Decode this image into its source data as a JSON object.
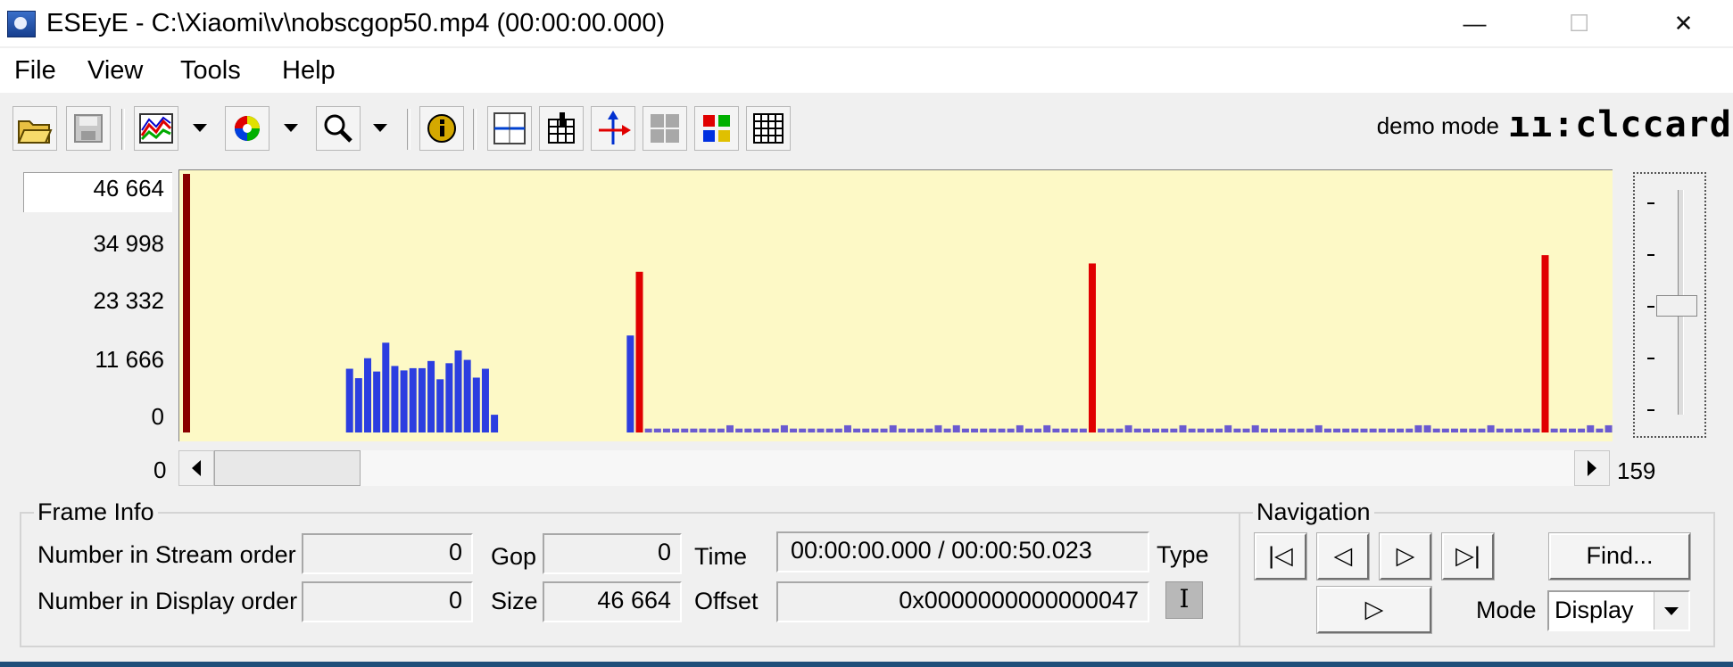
{
  "window": {
    "title": "ESEyE - C:\\Xiaomi\\v\\nobscgop50.mp4 (00:00:00.000)",
    "minimize_glyph": "—",
    "maximize_glyph": "☐",
    "close_glyph": "✕"
  },
  "menu": [
    "File",
    "View",
    "Tools",
    "Help"
  ],
  "toolbar": {
    "buttons": [
      "open-folder-icon",
      "save-disk-icon",
      "graph-icon",
      "color-wheel-icon",
      "zoom-magnifier-icon",
      "info-icon",
      "grid-lines-icon",
      "bar-table-icon",
      "axis-arrows-icon",
      "gray-blocks-icon",
      "color-blocks-icon",
      "grid-table-icon"
    ],
    "demo_mode": "demo mode",
    "logo_text": "ıı:clccard"
  },
  "chart_data": {
    "type": "bar",
    "y_tick_labels": [
      "46 664",
      "34 998",
      "23 332",
      "11 666",
      "0"
    ],
    "ylim": [
      0,
      46664
    ],
    "x_range": [
      0,
      159
    ],
    "series": [
      {
        "frame_type": "I",
        "color": "#e00000",
        "x": [
          0,
          50,
          100,
          150
        ],
        "values": [
          46664,
          29000,
          30500,
          32000
        ]
      },
      {
        "frame_type": "P",
        "color": "#2c3ee0",
        "x": [
          18,
          19,
          20,
          21,
          22,
          23,
          24,
          25,
          26,
          27,
          28,
          29,
          30,
          31,
          32,
          33,
          34,
          49
        ],
        "values": [
          11500,
          9800,
          13400,
          11000,
          16200,
          12000,
          11200,
          11600,
          11600,
          12900,
          9600,
          12500,
          14800,
          13100,
          9900,
          11500,
          3200,
          17500
        ]
      },
      {
        "frame_type": "B",
        "color": "#6a5ad0",
        "baseline": 700,
        "bump": 1300,
        "bumps_x": [
          60,
          66,
          73,
          78,
          83,
          85,
          92,
          95,
          104,
          110,
          115,
          118,
          125,
          136,
          137,
          144,
          155,
          157
        ]
      }
    ]
  },
  "scroll": {
    "min": "0",
    "max": "159"
  },
  "frame_info": {
    "title": "Frame Info",
    "stream_label": "Number in Stream order",
    "stream_value": "0",
    "display_label": "Number in Display order",
    "display_value": "0",
    "gop_label": "Gop",
    "gop_value": "0",
    "size_label": "Size",
    "size_value": "46 664",
    "time_label": "Time",
    "time_value": "00:00:00.000 / 00:00:50.023",
    "offset_label": "Offset",
    "offset_value": "0x0000000000000047",
    "type_label": "Type",
    "type_value": "I"
  },
  "navigation": {
    "title": "Navigation",
    "first_glyph": "|◁",
    "prev_glyph": "◁",
    "next_glyph": "▷",
    "last_glyph": "▷|",
    "find_label": "Find...",
    "play_glyph": "▷",
    "mode_label": "Mode",
    "mode_value": "Display"
  }
}
